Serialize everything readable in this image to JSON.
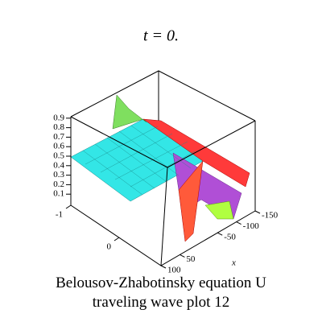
{
  "chart_data": {
    "type": "surface",
    "title": "t = 0.",
    "caption": "Belousov-Zhabotinsky equation U traveling wave plot 12",
    "xlabel": "x",
    "xticks": [
      -150,
      -100,
      -50,
      50,
      100
    ],
    "yticks": [
      -1,
      0
    ],
    "zticks": [
      0.1,
      0.2,
      0.3,
      0.4,
      0.5,
      0.6,
      0.7,
      0.8,
      0.9
    ]
  }
}
